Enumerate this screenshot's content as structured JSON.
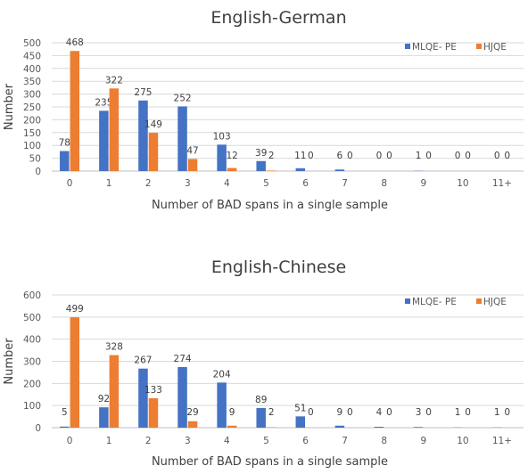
{
  "chart_data": [
    {
      "type": "bar",
      "title": "English-German",
      "xlabel": "Number of BAD spans in a single sample",
      "ylabel": "Number",
      "ylim": [
        0,
        500
      ],
      "yticks": [
        0,
        50,
        100,
        150,
        200,
        250,
        300,
        350,
        400,
        450,
        500
      ],
      "categories": [
        "0",
        "1",
        "2",
        "3",
        "4",
        "5",
        "6",
        "7",
        "8",
        "9",
        "10",
        "11+"
      ],
      "legend_position": "top-right",
      "grid": true,
      "series": [
        {
          "name": "MLQE- PE",
          "color": "#4472c4",
          "values": [
            78,
            235,
            275,
            252,
            103,
            39,
            11,
            6,
            0,
            1,
            0,
            0
          ]
        },
        {
          "name": "HJQE",
          "color": "#ed7d31",
          "values": [
            468,
            322,
            149,
            47,
            12,
            2,
            0,
            0,
            0,
            0,
            0,
            0
          ]
        }
      ]
    },
    {
      "type": "bar",
      "title": "English-Chinese",
      "xlabel": "Number of BAD spans in a single sample",
      "ylabel": "Number",
      "ylim": [
        0,
        600
      ],
      "yticks": [
        0,
        100,
        200,
        300,
        400,
        500,
        600
      ],
      "categories": [
        "0",
        "1",
        "2",
        "3",
        "4",
        "5",
        "6",
        "7",
        "8",
        "9",
        "10",
        "11+"
      ],
      "legend_position": "top-right",
      "grid": true,
      "series": [
        {
          "name": "MLQE- PE",
          "color": "#4472c4",
          "values": [
            5,
            92,
            267,
            274,
            204,
            89,
            51,
            9,
            4,
            3,
            1,
            1
          ]
        },
        {
          "name": "HJQE",
          "color": "#ed7d31",
          "values": [
            499,
            328,
            133,
            29,
            9,
            2,
            0,
            0,
            0,
            0,
            0,
            0
          ]
        }
      ]
    }
  ]
}
